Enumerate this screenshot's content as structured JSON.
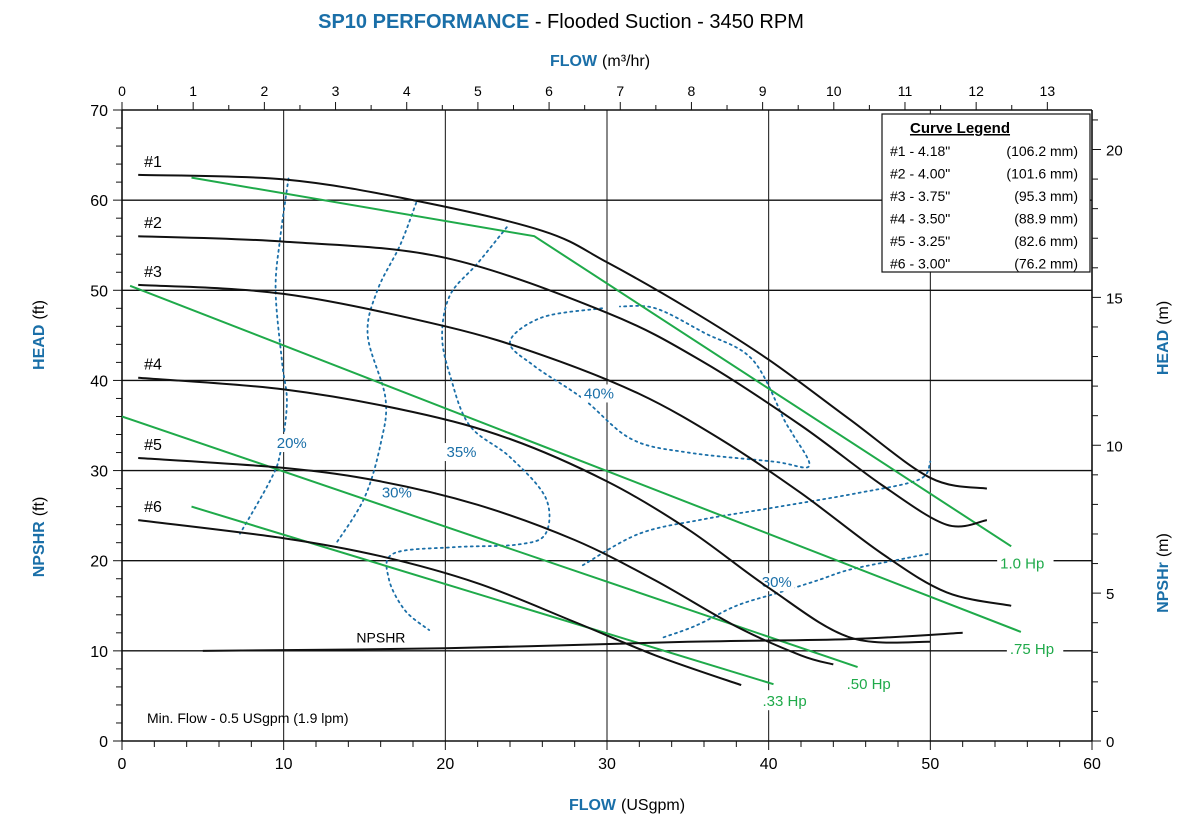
{
  "title": {
    "main": "SP10 PERFORMANCE",
    "rest": " - Flooded Suction - 3450 RPM"
  },
  "colors": {
    "brand_blue": "#1a6fa8",
    "power_green": "#1faa4a",
    "curve_black": "#111111"
  },
  "axes": {
    "top_label_bold": "FLOW",
    "top_label_unit": "(m³/hr)",
    "bottom_label_bold": "FLOW",
    "bottom_label_unit": "(USgpm)",
    "left_head_bold": "HEAD",
    "left_head_unit": "(ft)",
    "left_npshr_bold": "NPSHR",
    "left_npshr_unit": "(ft)",
    "right_head_bold": "HEAD",
    "right_head_unit": "(m)",
    "right_npshr_bold": "NPSHr",
    "right_npshr_unit": "(m)"
  },
  "legend": {
    "title": "Curve Legend",
    "rows": [
      {
        "label": "#1 - 4.18\"",
        "mm": "(106.2 mm)"
      },
      {
        "label": "#2 - 4.00\"",
        "mm": "(101.6 mm)"
      },
      {
        "label": "#3 - 3.75\"",
        "mm": "(95.3 mm)"
      },
      {
        "label": "#4 - 3.50\"",
        "mm": "(88.9 mm)"
      },
      {
        "label": "#5 - 3.25\"",
        "mm": "(82.6 mm)"
      },
      {
        "label": "#6 - 3.00\"",
        "mm": "(76.2 mm)"
      }
    ]
  },
  "min_flow_note": "Min. Flow - 0.5 USgpm (1.9 lpm)",
  "chart_data": {
    "type": "line",
    "title": "SP10 PERFORMANCE - Flooded Suction - 3450 RPM",
    "xlabel": "FLOW (USgpm)",
    "ylabel": "HEAD (ft)",
    "x_range": [
      0,
      60
    ],
    "y_range": [
      0,
      70
    ],
    "x_ticks": [
      "0",
      "10",
      "20",
      "30",
      "40",
      "50",
      "60"
    ],
    "y_ticks": [
      "0",
      "10",
      "20",
      "30",
      "40",
      "50",
      "60",
      "70"
    ],
    "top_axis": {
      "label": "FLOW (m³/hr)",
      "ticks": [
        "0",
        "1",
        "2",
        "3",
        "4",
        "5",
        "6",
        "7",
        "8",
        "9",
        "10",
        "11",
        "12",
        "13"
      ]
    },
    "right_axis": {
      "label": "HEAD (m)",
      "ticks": [
        "0",
        "5",
        "10",
        "15",
        "20"
      ]
    },
    "grid": "major lines at 10 ft and 10 USgpm",
    "head_curves": [
      {
        "name": "#1",
        "label": "#1",
        "points": [
          [
            1,
            62.8
          ],
          [
            10,
            62.3
          ],
          [
            18,
            60
          ],
          [
            26,
            56.6
          ],
          [
            30,
            53.1
          ],
          [
            35,
            48
          ],
          [
            40,
            42.3
          ],
          [
            45,
            35.7
          ],
          [
            50,
            29.2
          ],
          [
            53.5,
            28
          ]
        ]
      },
      {
        "name": "#2",
        "label": "#2",
        "points": [
          [
            1,
            56
          ],
          [
            10,
            55.4
          ],
          [
            20,
            53.6
          ],
          [
            30,
            47.5
          ],
          [
            36,
            42
          ],
          [
            42,
            35
          ],
          [
            47,
            28.4
          ],
          [
            51,
            24
          ],
          [
            53.5,
            24.5
          ]
        ]
      },
      {
        "name": "#3",
        "label": "#3",
        "points": [
          [
            1,
            50.6
          ],
          [
            10,
            49.6
          ],
          [
            20,
            46
          ],
          [
            26,
            42.8
          ],
          [
            32,
            38.5
          ],
          [
            37,
            33.5
          ],
          [
            42,
            27.5
          ],
          [
            47,
            20.8
          ],
          [
            51,
            16.5
          ],
          [
            55,
            15
          ]
        ]
      },
      {
        "name": "#4",
        "label": "#4",
        "points": [
          [
            1,
            40.3
          ],
          [
            10,
            39
          ],
          [
            18,
            36.5
          ],
          [
            24,
            33.5
          ],
          [
            30,
            28.8
          ],
          [
            35,
            23.5
          ],
          [
            40,
            17
          ],
          [
            45,
            11.5
          ],
          [
            50,
            11
          ]
        ]
      },
      {
        "name": "#5",
        "label": "#5",
        "points": [
          [
            1,
            31.4
          ],
          [
            10,
            30.3
          ],
          [
            16,
            28.8
          ],
          [
            22,
            26.2
          ],
          [
            28,
            22.3
          ],
          [
            33,
            17.8
          ],
          [
            38,
            12.7
          ],
          [
            42,
            9.5
          ],
          [
            44,
            8.5
          ]
        ]
      },
      {
        "name": "#6",
        "label": "#6",
        "points": [
          [
            1,
            24.5
          ],
          [
            10,
            22.5
          ],
          [
            16,
            20.5
          ],
          [
            22,
            17.5
          ],
          [
            28,
            13.2
          ],
          [
            33,
            9.5
          ],
          [
            38.3,
            6.2
          ]
        ]
      }
    ],
    "npshr_curve": {
      "label": "NPSHR",
      "points": [
        [
          5,
          10
        ],
        [
          20,
          10.3
        ],
        [
          35,
          11
        ],
        [
          45,
          11.3
        ],
        [
          52,
          12
        ]
      ]
    },
    "power_lines": [
      {
        "label": "1.0 Hp",
        "points": [
          [
            4.3,
            62.5
          ],
          [
            25.5,
            56
          ],
          [
            55,
            21.6
          ]
        ]
      },
      {
        "label": ".75 Hp",
        "points": [
          [
            0.5,
            50.5
          ],
          [
            55.6,
            12.1
          ]
        ]
      },
      {
        "label": ".50 Hp",
        "points": [
          [
            0,
            36
          ],
          [
            45.5,
            8.2
          ]
        ]
      },
      {
        "label": ".33 Hp",
        "points": [
          [
            4.3,
            26
          ],
          [
            40.3,
            6.3
          ]
        ]
      }
    ],
    "efficiency_lines": [
      {
        "label": "20%",
        "points": [
          [
            10.3,
            62.4
          ],
          [
            9.8,
            56
          ],
          [
            9.5,
            50
          ],
          [
            9.9,
            42
          ],
          [
            10.2,
            37.5
          ],
          [
            9.8,
            32
          ],
          [
            9.2,
            29
          ],
          [
            7.3,
            23
          ]
        ]
      },
      {
        "label": "30%",
        "points": [
          [
            18.2,
            59.7
          ],
          [
            17.2,
            55
          ],
          [
            15.8,
            50
          ],
          [
            15.2,
            45
          ],
          [
            16.3,
            38
          ],
          [
            16,
            33
          ],
          [
            15,
            27
          ],
          [
            13.2,
            21.8
          ]
        ]
      },
      {
        "label": "35%",
        "points": [
          [
            23.8,
            57
          ],
          [
            22,
            53
          ],
          [
            20.3,
            49.5
          ],
          [
            19.8,
            45
          ],
          [
            20.3,
            40.5
          ],
          [
            21.5,
            35
          ],
          [
            24,
            31.5
          ],
          [
            26.2,
            27
          ],
          [
            26.2,
            23
          ],
          [
            24.5,
            21.8
          ],
          [
            20.5,
            21.5
          ],
          [
            16.8,
            20.8
          ],
          [
            16.5,
            18
          ],
          [
            17.5,
            14.5
          ],
          [
            19,
            12.3
          ]
        ]
      },
      {
        "label": "40%",
        "points": [
          [
            29.7,
            48
          ],
          [
            26,
            47
          ],
          [
            24,
            44.3
          ],
          [
            25.5,
            41.6
          ],
          [
            28.5,
            38
          ],
          [
            31.5,
            33.5
          ],
          [
            35,
            32
          ],
          [
            40.3,
            31
          ],
          [
            42.5,
            30.5
          ],
          [
            41.5,
            34
          ],
          [
            41,
            35.5
          ],
          [
            39,
            42.3
          ],
          [
            36,
            45.3
          ],
          [
            33,
            48
          ],
          [
            30.8,
            48.2
          ]
        ]
      },
      {
        "label": "30%",
        "points": [
          [
            33.5,
            11.5
          ],
          [
            35.5,
            12.8
          ],
          [
            38,
            15
          ],
          [
            40.5,
            16.4
          ],
          [
            43,
            17.8
          ],
          [
            45,
            19
          ],
          [
            48,
            20.1
          ],
          [
            50,
            20.8
          ]
        ]
      },
      {
        "label": "",
        "points": [
          [
            28.5,
            19.5
          ],
          [
            32,
            23
          ],
          [
            36,
            24.6
          ],
          [
            40,
            25.8
          ],
          [
            45.5,
            27.5
          ],
          [
            49.3,
            29
          ],
          [
            50,
            31
          ]
        ]
      }
    ],
    "efficiency_label_positions": [
      [
        10.5,
        32.5
      ],
      [
        17,
        27
      ],
      [
        21,
        31.5
      ],
      [
        29.5,
        38
      ]
    ]
  }
}
